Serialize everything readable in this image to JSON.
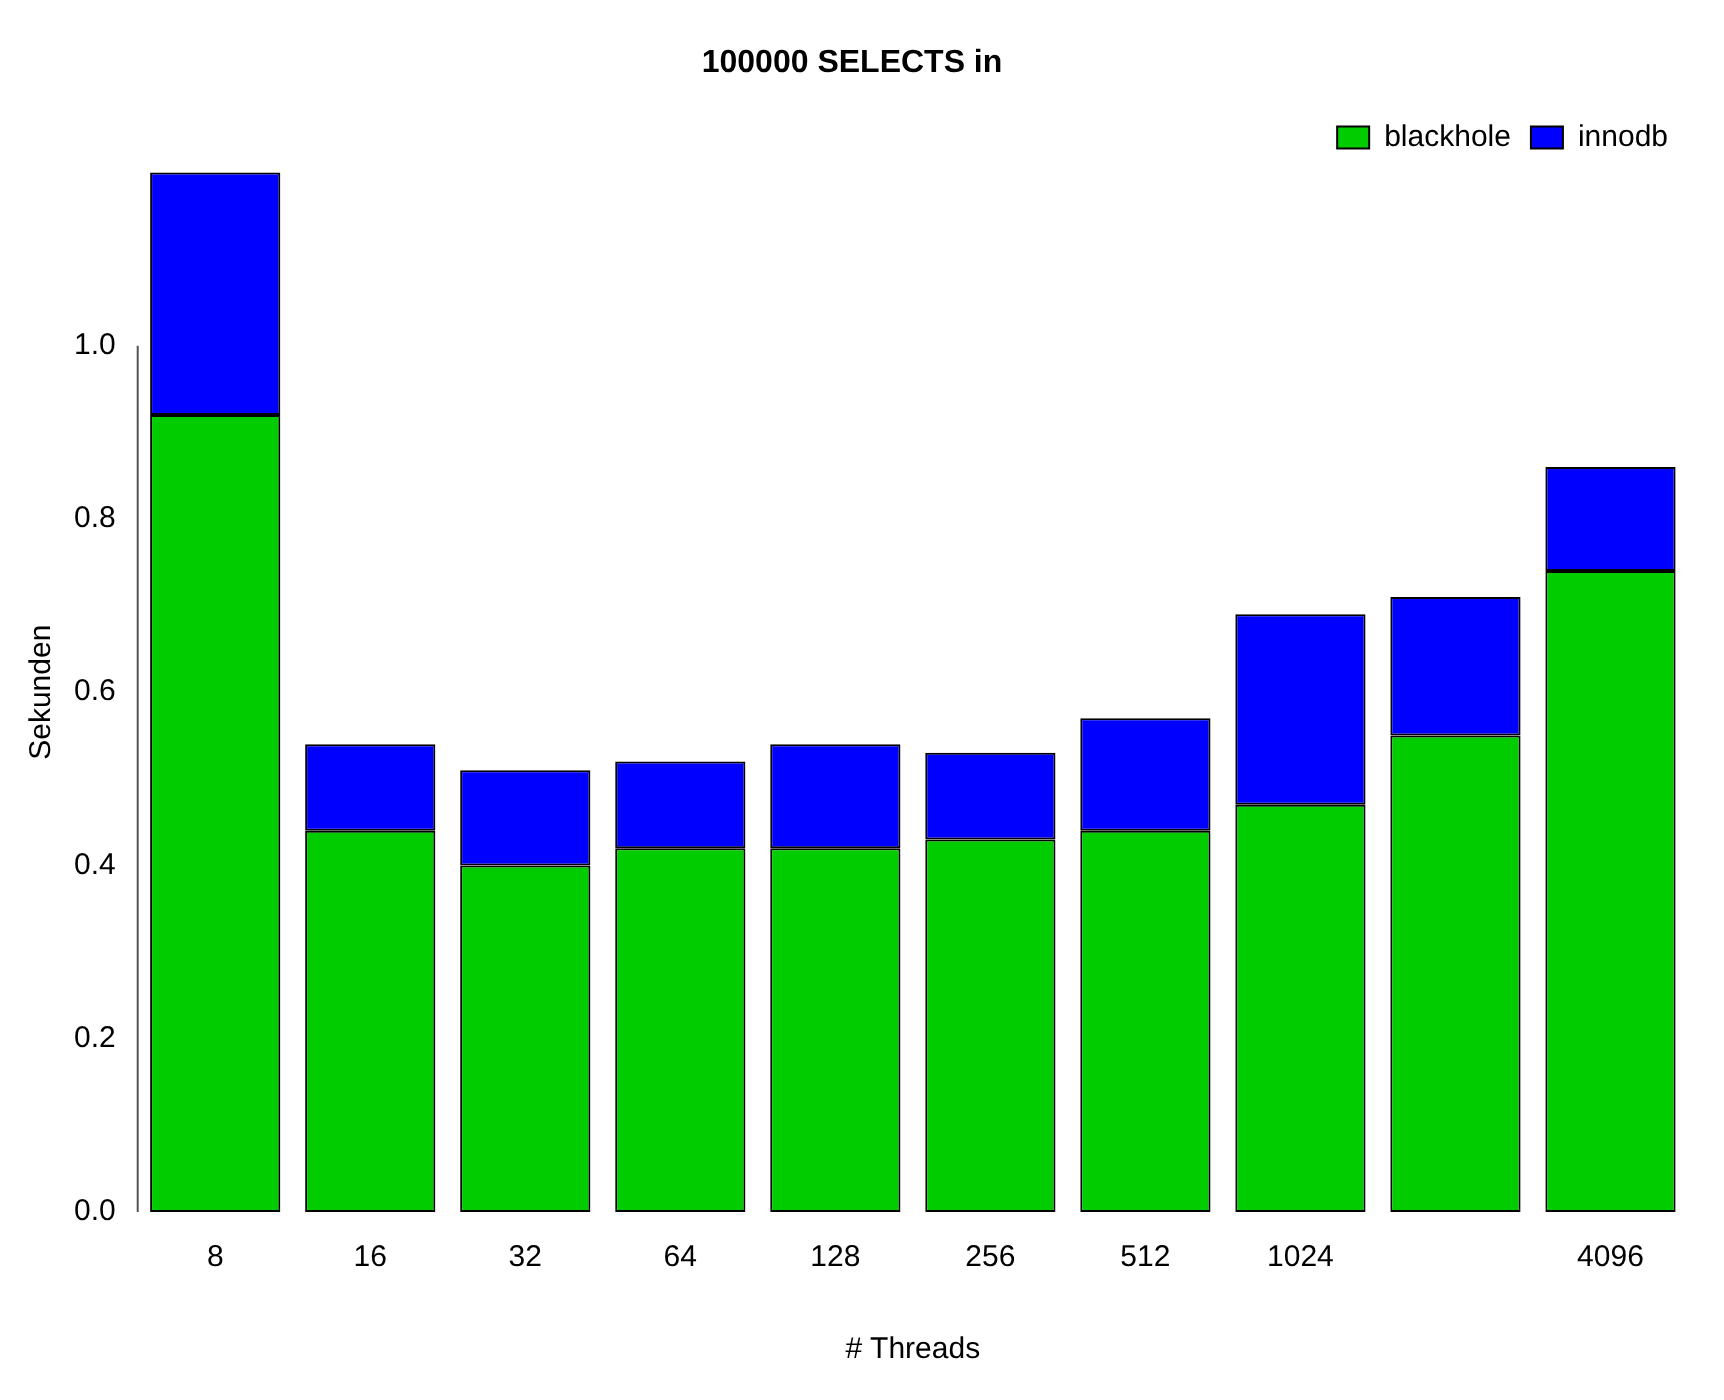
{
  "chart_data": {
    "type": "bar",
    "title": "100000 SELECTS in",
    "xlabel": "# Threads",
    "ylabel": "Sekunden",
    "categories": [
      "8",
      "16",
      "32",
      "64",
      "128",
      "256",
      "512",
      "1024",
      null,
      "4096"
    ],
    "stacked": true,
    "series": [
      {
        "name": "blackhole",
        "color": "#00cc00",
        "values": [
          0.92,
          0.44,
          0.4,
          0.42,
          0.42,
          0.43,
          0.44,
          0.47,
          0.55,
          0.74
        ]
      },
      {
        "name": "innodb",
        "color": "#0000ff",
        "values": [
          0.28,
          0.1,
          0.11,
          0.1,
          0.12,
          0.1,
          0.13,
          0.22,
          0.16,
          0.12
        ]
      }
    ],
    "ylim": [
      0,
      1.2
    ],
    "yticks": [
      {
        "value": 0,
        "label": "0.0"
      },
      0.2,
      0.4,
      0.6,
      0.8,
      {
        "value": 1,
        "label": "1.0"
      }
    ],
    "grid": false,
    "legend": "top right"
  }
}
